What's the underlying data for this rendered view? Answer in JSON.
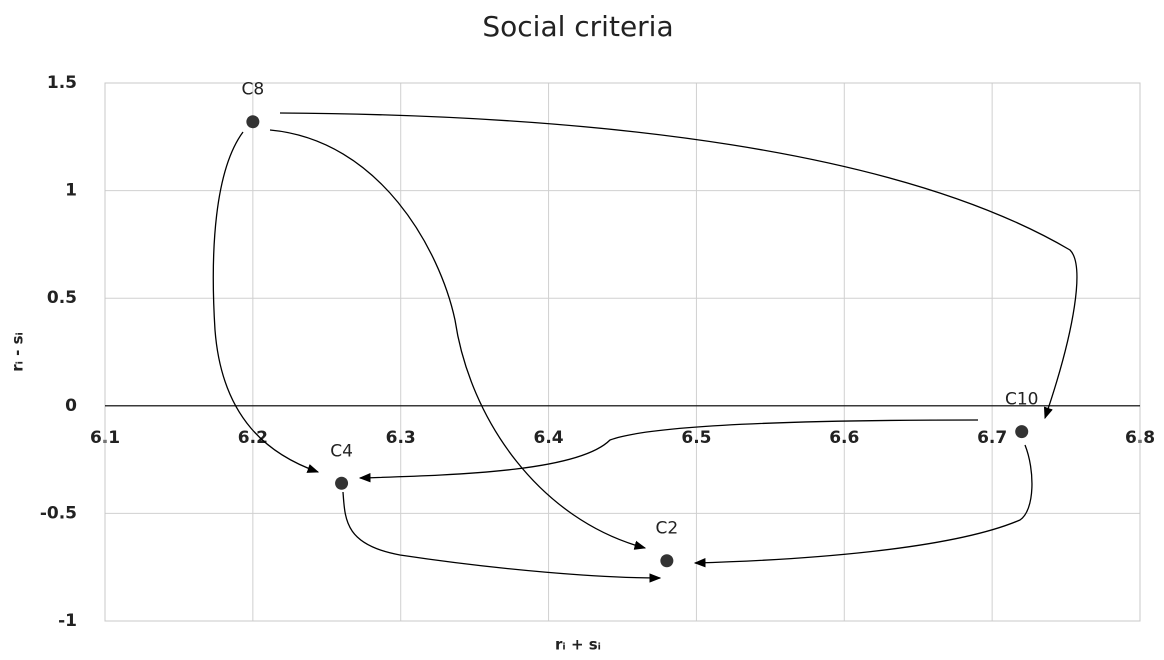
{
  "chart_data": {
    "type": "scatter",
    "title": "Social criteria",
    "xlabel": "rᵢ + sᵢ",
    "ylabel": "rᵢ - sᵢ",
    "series": [
      {
        "color": "#333333",
        "labels": [
          "C8",
          "C4",
          "C2",
          "C10"
        ],
        "x": [
          6.2,
          6.26,
          6.48,
          6.72
        ],
        "values": [
          1.32,
          -0.36,
          -0.72,
          -0.12
        ]
      }
    ],
    "xlim": [
      6.1,
      6.8
    ],
    "xticks": [
      6.1,
      6.2,
      6.3,
      6.4,
      6.5,
      6.6,
      6.7,
      6.8
    ],
    "ylim": [
      -1,
      1.5
    ],
    "yticks": [
      1.5,
      1,
      0.5,
      0,
      -0.5,
      -1
    ],
    "grid": true
  }
}
